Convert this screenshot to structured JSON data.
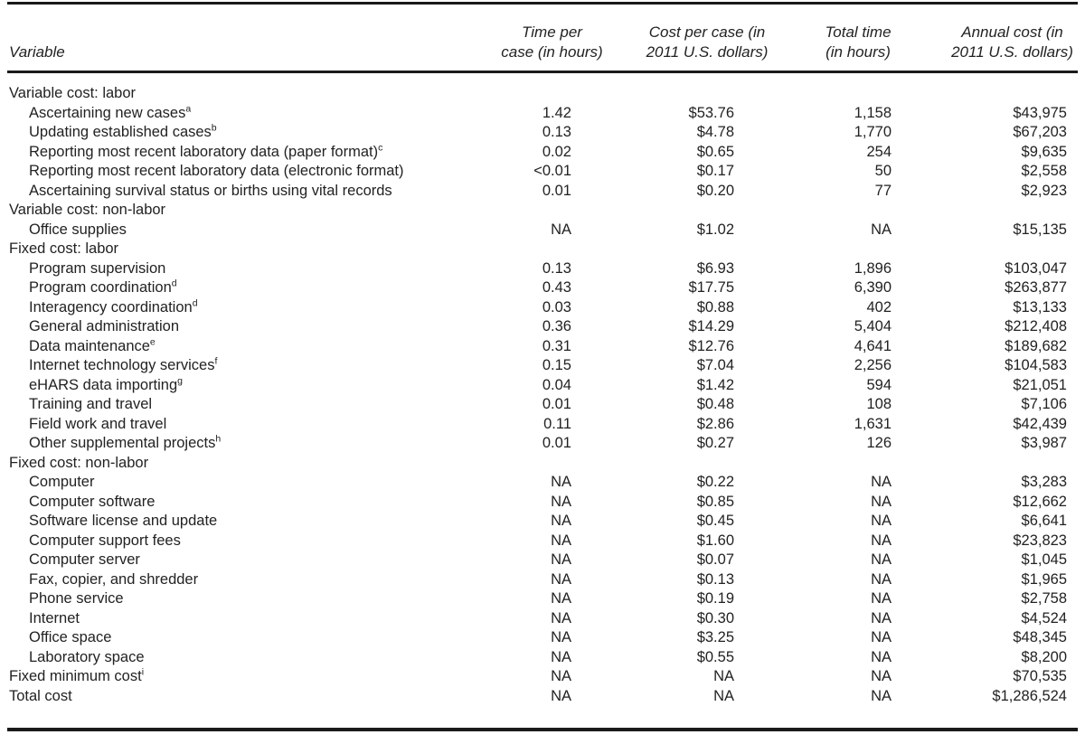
{
  "colors": {
    "background": "#ffffff",
    "text": "#222222",
    "rule": "#1a1a1a"
  },
  "table": {
    "headers": [
      {
        "line1": "Variable",
        "line2": ""
      },
      {
        "line1": "Time per",
        "line2": "case (in hours)"
      },
      {
        "line1": "Cost per case (in",
        "line2": "2011 U.S. dollars)"
      },
      {
        "line1": "Total time",
        "line2": "(in hours)"
      },
      {
        "line1": "Annual cost (in",
        "line2": "2011 U.S. dollars)"
      }
    ],
    "rows": [
      {
        "label": "Variable cost: labor",
        "sup": "",
        "indent": 0,
        "section": true,
        "time": "",
        "cost": "",
        "total": "",
        "annual": ""
      },
      {
        "label": "Ascertaining new cases",
        "sup": "a",
        "indent": 1,
        "section": false,
        "time": "1.42",
        "cost": "$53.76",
        "total": "1,158",
        "annual": "$43,975"
      },
      {
        "label": "Updating established cases",
        "sup": "b",
        "indent": 1,
        "section": false,
        "time": "0.13",
        "cost": "$4.78",
        "total": "1,770",
        "annual": "$67,203"
      },
      {
        "label": "Reporting most recent laboratory data (paper format)",
        "sup": "c",
        "indent": 1,
        "section": false,
        "time": "0.02",
        "cost": "$0.65",
        "total": "254",
        "annual": "$9,635"
      },
      {
        "label": "Reporting most recent laboratory data (electronic format)",
        "sup": "",
        "indent": 1,
        "section": false,
        "time": "<0.01",
        "cost": "$0.17",
        "total": "50",
        "annual": "$2,558"
      },
      {
        "label": "Ascertaining survival status or births using vital records",
        "sup": "",
        "indent": 1,
        "section": false,
        "time": "0.01",
        "cost": "$0.20",
        "total": "77",
        "annual": "$2,923"
      },
      {
        "label": "Variable cost: non-labor",
        "sup": "",
        "indent": 0,
        "section": true,
        "time": "",
        "cost": "",
        "total": "",
        "annual": ""
      },
      {
        "label": "Office supplies",
        "sup": "",
        "indent": 1,
        "section": false,
        "time": "NA",
        "cost": "$1.02",
        "total": "NA",
        "annual": "$15,135"
      },
      {
        "label": "Fixed cost: labor",
        "sup": "",
        "indent": 0,
        "section": true,
        "time": "",
        "cost": "",
        "total": "",
        "annual": ""
      },
      {
        "label": "Program supervision",
        "sup": "",
        "indent": 1,
        "section": false,
        "time": "0.13",
        "cost": "$6.93",
        "total": "1,896",
        "annual": "$103,047"
      },
      {
        "label": "Program coordination",
        "sup": "d",
        "indent": 1,
        "section": false,
        "time": "0.43",
        "cost": "$17.75",
        "total": "6,390",
        "annual": "$263,877"
      },
      {
        "label": "Interagency coordination",
        "sup": "d",
        "indent": 1,
        "section": false,
        "time": "0.03",
        "cost": "$0.88",
        "total": "402",
        "annual": "$13,133"
      },
      {
        "label": "General administration",
        "sup": "",
        "indent": 1,
        "section": false,
        "time": "0.36",
        "cost": "$14.29",
        "total": "5,404",
        "annual": "$212,408"
      },
      {
        "label": "Data maintenance",
        "sup": "e",
        "indent": 1,
        "section": false,
        "time": "0.31",
        "cost": "$12.76",
        "total": "4,641",
        "annual": "$189,682"
      },
      {
        "label": "Internet technology services",
        "sup": "f",
        "indent": 1,
        "section": false,
        "time": "0.15",
        "cost": "$7.04",
        "total": "2,256",
        "annual": "$104,583"
      },
      {
        "label": "eHARS data importing",
        "sup": "g",
        "indent": 1,
        "section": false,
        "time": "0.04",
        "cost": "$1.42",
        "total": "594",
        "annual": "$21,051"
      },
      {
        "label": "Training and travel",
        "sup": "",
        "indent": 1,
        "section": false,
        "time": "0.01",
        "cost": "$0.48",
        "total": "108",
        "annual": "$7,106"
      },
      {
        "label": "Field work and travel",
        "sup": "",
        "indent": 1,
        "section": false,
        "time": "0.11",
        "cost": "$2.86",
        "total": "1,631",
        "annual": "$42,439"
      },
      {
        "label": "Other supplemental projects",
        "sup": "h",
        "indent": 1,
        "section": false,
        "time": "0.01",
        "cost": "$0.27",
        "total": "126",
        "annual": "$3,987"
      },
      {
        "label": "Fixed cost: non-labor",
        "sup": "",
        "indent": 0,
        "section": true,
        "time": "",
        "cost": "",
        "total": "",
        "annual": ""
      },
      {
        "label": "Computer",
        "sup": "",
        "indent": 1,
        "section": false,
        "time": "NA",
        "cost": "$0.22",
        "total": "NA",
        "annual": "$3,283"
      },
      {
        "label": "Computer software",
        "sup": "",
        "indent": 1,
        "section": false,
        "time": "NA",
        "cost": "$0.85",
        "total": "NA",
        "annual": "$12,662"
      },
      {
        "label": "Software license and update",
        "sup": "",
        "indent": 1,
        "section": false,
        "time": "NA",
        "cost": "$0.45",
        "total": "NA",
        "annual": "$6,641"
      },
      {
        "label": "Computer support fees",
        "sup": "",
        "indent": 1,
        "section": false,
        "time": "NA",
        "cost": "$1.60",
        "total": "NA",
        "annual": "$23,823"
      },
      {
        "label": "Computer server",
        "sup": "",
        "indent": 1,
        "section": false,
        "time": "NA",
        "cost": "$0.07",
        "total": "NA",
        "annual": "$1,045"
      },
      {
        "label": "Fax, copier, and shredder",
        "sup": "",
        "indent": 1,
        "section": false,
        "time": "NA",
        "cost": "$0.13",
        "total": "NA",
        "annual": "$1,965"
      },
      {
        "label": "Phone service",
        "sup": "",
        "indent": 1,
        "section": false,
        "time": "NA",
        "cost": "$0.19",
        "total": "NA",
        "annual": "$2,758"
      },
      {
        "label": "Internet",
        "sup": "",
        "indent": 1,
        "section": false,
        "time": "NA",
        "cost": "$0.30",
        "total": "NA",
        "annual": "$4,524"
      },
      {
        "label": "Office space",
        "sup": "",
        "indent": 1,
        "section": false,
        "time": "NA",
        "cost": "$3.25",
        "total": "NA",
        "annual": "$48,345"
      },
      {
        "label": "Laboratory space",
        "sup": "",
        "indent": 1,
        "section": false,
        "time": "NA",
        "cost": "$0.55",
        "total": "NA",
        "annual": "$8,200"
      },
      {
        "label": "Fixed minimum cost",
        "sup": "i",
        "indent": 0,
        "section": false,
        "time": "NA",
        "cost": "NA",
        "total": "NA",
        "annual": "$70,535"
      },
      {
        "label": "Total cost",
        "sup": "",
        "indent": 0,
        "section": false,
        "time": "NA",
        "cost": "NA",
        "total": "NA",
        "annual": "$1,286,524"
      }
    ]
  }
}
